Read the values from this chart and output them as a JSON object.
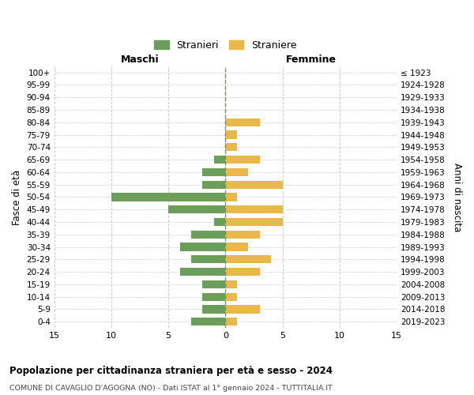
{
  "age_groups": [
    "100+",
    "95-99",
    "90-94",
    "85-89",
    "80-84",
    "75-79",
    "70-74",
    "65-69",
    "60-64",
    "55-59",
    "50-54",
    "45-49",
    "40-44",
    "35-39",
    "30-34",
    "25-29",
    "20-24",
    "15-19",
    "10-14",
    "5-9",
    "0-4"
  ],
  "birth_years": [
    "≤ 1923",
    "1924-1928",
    "1929-1933",
    "1934-1938",
    "1939-1943",
    "1944-1948",
    "1949-1953",
    "1954-1958",
    "1959-1963",
    "1964-1968",
    "1969-1973",
    "1974-1978",
    "1979-1983",
    "1984-1988",
    "1989-1993",
    "1994-1998",
    "1999-2003",
    "2004-2008",
    "2009-2013",
    "2014-2018",
    "2019-2023"
  ],
  "maschi": [
    0,
    0,
    0,
    0,
    0,
    0,
    0,
    1,
    2,
    2,
    10,
    5,
    1,
    3,
    4,
    3,
    4,
    2,
    2,
    2,
    3
  ],
  "femmine": [
    0,
    0,
    0,
    0,
    3,
    1,
    1,
    3,
    2,
    5,
    1,
    5,
    5,
    3,
    2,
    4,
    3,
    1,
    1,
    3,
    1
  ],
  "color_maschi": "#6a9e5a",
  "color_femmine": "#e8b84b",
  "title": "Popolazione per cittadinanza straniera per età e sesso - 2024",
  "subtitle": "COMUNE DI CAVAGLIO D'AGOGNA (NO) - Dati ISTAT al 1° gennaio 2024 - TUTTITALIA.IT",
  "ylabel_left": "Fasce di età",
  "ylabel_right": "Anni di nascita",
  "legend_maschi": "Stranieri",
  "legend_femmine": "Straniere",
  "header_maschi": "Maschi",
  "header_femmine": "Femmine",
  "xlim": 15,
  "background_color": "#ffffff",
  "grid_color": "#cccccc"
}
